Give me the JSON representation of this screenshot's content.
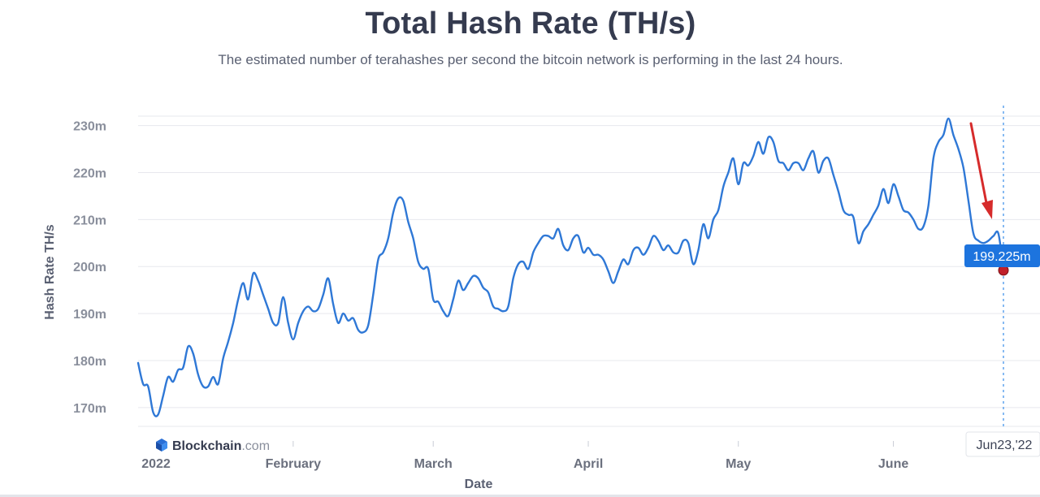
{
  "header": {
    "title": "Total Hash Rate (TH/s)",
    "subtitle": "The estimated number of terahashes per second the bitcoin network is performing in the last 24 hours."
  },
  "branding": {
    "name": "Blockchain",
    "suffix": ".com"
  },
  "tooltip": {
    "value": "199.225m",
    "date": "Jun23,'22"
  },
  "colors": {
    "line": "#2f78d6",
    "tooltip": "#1d74de",
    "annotation_arrow": "#d62b2b",
    "marker": "#c0202a"
  },
  "chart_data": {
    "type": "line",
    "title": "Total Hash Rate (TH/s)",
    "xlabel": "Date",
    "ylabel": "Hash Rate TH/s",
    "ylim": [
      166,
      232
    ],
    "yticks": [
      170,
      180,
      190,
      200,
      210,
      220,
      230
    ],
    "ytick_labels": [
      "170m",
      "180m",
      "190m",
      "200m",
      "210m",
      "220m",
      "230m"
    ],
    "xlim": [
      "2022-01-01",
      "2022-06-23"
    ],
    "xticks": [
      "2022",
      "February",
      "March",
      "April",
      "May",
      "June"
    ],
    "grid": true,
    "series": [
      {
        "x": [
          "2022-01-01",
          "2022-01-02",
          "2022-01-03",
          "2022-01-04",
          "2022-01-05",
          "2022-01-06",
          "2022-01-07",
          "2022-01-08",
          "2022-01-09",
          "2022-01-10",
          "2022-01-11",
          "2022-01-12",
          "2022-01-13",
          "2022-01-14",
          "2022-01-15",
          "2022-01-16",
          "2022-01-17",
          "2022-01-18",
          "2022-01-19",
          "2022-01-20",
          "2022-01-21",
          "2022-01-22",
          "2022-01-23",
          "2022-01-24",
          "2022-01-25",
          "2022-01-26",
          "2022-01-27",
          "2022-01-28",
          "2022-01-29",
          "2022-01-30",
          "2022-01-31",
          "2022-02-01",
          "2022-02-02",
          "2022-02-03",
          "2022-02-04",
          "2022-02-05",
          "2022-02-06",
          "2022-02-07",
          "2022-02-08",
          "2022-02-09",
          "2022-02-10",
          "2022-02-11",
          "2022-02-12",
          "2022-02-13",
          "2022-02-14",
          "2022-02-15",
          "2022-02-16",
          "2022-02-17",
          "2022-02-18",
          "2022-02-19",
          "2022-02-20",
          "2022-02-21",
          "2022-02-22",
          "2022-02-23",
          "2022-02-24",
          "2022-02-25",
          "2022-02-26",
          "2022-02-27",
          "2022-02-28",
          "2022-03-01",
          "2022-03-02",
          "2022-03-03",
          "2022-03-04",
          "2022-03-05",
          "2022-03-06",
          "2022-03-07",
          "2022-03-08",
          "2022-03-09",
          "2022-03-10",
          "2022-03-11",
          "2022-03-12",
          "2022-03-13",
          "2022-03-14",
          "2022-03-15",
          "2022-03-16",
          "2022-03-17",
          "2022-03-18",
          "2022-03-19",
          "2022-03-20",
          "2022-03-21",
          "2022-03-22",
          "2022-03-23",
          "2022-03-24",
          "2022-03-25",
          "2022-03-26",
          "2022-03-27",
          "2022-03-28",
          "2022-03-29",
          "2022-03-30",
          "2022-03-31",
          "2022-04-01",
          "2022-04-02",
          "2022-04-03",
          "2022-04-04",
          "2022-04-05",
          "2022-04-06",
          "2022-04-07",
          "2022-04-08",
          "2022-04-09",
          "2022-04-10",
          "2022-04-11",
          "2022-04-12",
          "2022-04-13",
          "2022-04-14",
          "2022-04-15",
          "2022-04-16",
          "2022-04-17",
          "2022-04-18",
          "2022-04-19",
          "2022-04-20",
          "2022-04-21",
          "2022-04-22",
          "2022-04-23",
          "2022-04-24",
          "2022-04-25",
          "2022-04-26",
          "2022-04-27",
          "2022-04-28",
          "2022-04-29",
          "2022-04-30",
          "2022-05-01",
          "2022-05-02",
          "2022-05-03",
          "2022-05-04",
          "2022-05-05",
          "2022-05-06",
          "2022-05-07",
          "2022-05-08",
          "2022-05-09",
          "2022-05-10",
          "2022-05-11",
          "2022-05-12",
          "2022-05-13",
          "2022-05-14",
          "2022-05-15",
          "2022-05-16",
          "2022-05-17",
          "2022-05-18",
          "2022-05-19",
          "2022-05-20",
          "2022-05-21",
          "2022-05-22",
          "2022-05-23",
          "2022-05-24",
          "2022-05-25",
          "2022-05-26",
          "2022-05-27",
          "2022-05-28",
          "2022-05-29",
          "2022-05-30",
          "2022-05-31",
          "2022-06-01",
          "2022-06-02",
          "2022-06-03",
          "2022-06-04",
          "2022-06-05",
          "2022-06-06",
          "2022-06-07",
          "2022-06-08",
          "2022-06-09",
          "2022-06-10",
          "2022-06-11",
          "2022-06-12",
          "2022-06-13",
          "2022-06-14",
          "2022-06-15",
          "2022-06-16",
          "2022-06-17",
          "2022-06-18",
          "2022-06-19",
          "2022-06-20",
          "2022-06-21",
          "2022-06-22",
          "2022-06-23"
        ],
        "values": [
          179.5,
          175,
          174.5,
          169,
          168.5,
          172.5,
          176.5,
          175.5,
          178,
          178.5,
          183,
          181.5,
          177,
          174.5,
          174.5,
          176.5,
          175,
          180.5,
          184,
          188,
          193,
          196.5,
          193,
          198.5,
          197,
          194,
          191,
          188,
          188,
          193.5,
          188,
          184.5,
          188,
          190.5,
          191.5,
          190.5,
          191,
          194,
          197.5,
          192,
          188,
          190,
          188.5,
          189,
          186.5,
          186,
          187.5,
          194,
          201.5,
          203,
          206,
          211.5,
          214.5,
          214,
          209.5,
          206,
          201,
          199.5,
          199.5,
          193,
          192.5,
          190.5,
          189.5,
          193,
          197,
          195,
          196.5,
          198,
          197.5,
          195.5,
          194.5,
          191.5,
          191,
          190.5,
          191.5,
          197.5,
          200.5,
          201,
          199.5,
          203,
          205,
          206.5,
          206.5,
          206,
          208,
          204.5,
          203.5,
          206,
          206.5,
          203,
          204,
          202.5,
          202.5,
          201.5,
          199,
          196.5,
          199,
          201.5,
          200.5,
          203.5,
          204,
          202.5,
          204,
          206.5,
          205.5,
          203.5,
          204.5,
          203,
          203,
          205.5,
          205,
          200.5,
          203.5,
          209,
          206,
          210,
          212,
          217,
          220,
          223,
          217.5,
          222,
          221.5,
          223.5,
          226.5,
          224,
          227.5,
          226.5,
          222.5,
          222,
          220.5,
          222,
          222,
          220.5,
          223,
          224.5,
          220,
          222.5,
          223,
          219.5,
          216,
          212,
          211,
          210.5,
          205,
          207.5,
          209,
          211,
          213,
          216.5,
          213.5,
          217.5,
          215,
          212,
          211.5,
          210,
          208,
          208.5,
          213,
          223,
          226.5,
          228,
          231.5,
          228,
          225,
          221,
          214,
          207,
          205.5,
          205,
          205.5,
          206.5,
          207,
          199.2
        ]
      }
    ]
  }
}
